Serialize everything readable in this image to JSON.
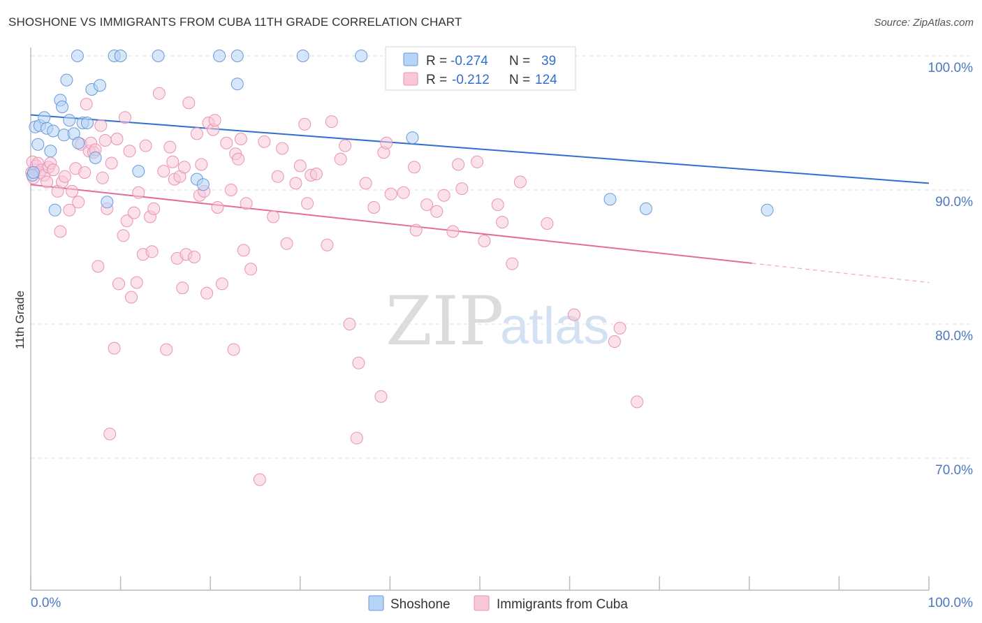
{
  "title": "SHOSHONE VS IMMIGRANTS FROM CUBA 11TH GRADE CORRELATION CHART",
  "source": "Source: ZipAtlas.com",
  "watermark": {
    "zip": "ZIP",
    "atlas": "atlas"
  },
  "colors": {
    "shoshone_fill": "#b7d3f5",
    "shoshone_stroke": "#6a9ad8",
    "shoshone_line": "#2f6fcf",
    "cuba_fill": "#f8c8d8",
    "cuba_stroke": "#e993b2",
    "cuba_line": "#e46c99",
    "grid": "#e2e2e2",
    "axis_label": "#4a78c2"
  },
  "legend_top": [
    {
      "r_label": "R =",
      "r_value": "-0.274",
      "n_label": "N =",
      "n_value": "39"
    },
    {
      "r_label": "R =",
      "r_value": "-0.212",
      "n_label": "N =",
      "n_value": "124"
    }
  ],
  "chart_data": {
    "type": "scatter",
    "title": "SHOSHONE VS IMMIGRANTS FROM CUBA 11TH GRADE CORRELATION CHART",
    "xlabel": "",
    "ylabel": "11th Grade",
    "xlim": [
      0,
      100
    ],
    "ylim": [
      60.5,
      101.5
    ],
    "x_tick_labels": [
      "0.0%",
      "100.0%"
    ],
    "y_ticks": [
      {
        "value": 100,
        "label": "100.0%"
      },
      {
        "value": 90,
        "label": "90.0%"
      },
      {
        "value": 80,
        "label": "80.0%"
      },
      {
        "value": 70,
        "label": "70.0%"
      }
    ],
    "grid": true,
    "legend_position": "bottom-center",
    "series": [
      {
        "name": "Shoshone",
        "r": -0.274,
        "n": 39,
        "trend": {
          "x": [
            0,
            100
          ],
          "y": [
            95.6,
            90.5
          ],
          "dashed_from": null
        },
        "points": [
          [
            0.2,
            91.1
          ],
          [
            0.5,
            94.7
          ],
          [
            0.8,
            93.4
          ],
          [
            1.0,
            94.8
          ],
          [
            1.5,
            95.4
          ],
          [
            1.8,
            94.6
          ],
          [
            2.2,
            92.9
          ],
          [
            2.5,
            94.4
          ],
          [
            2.7,
            88.5
          ],
          [
            3.3,
            96.7
          ],
          [
            3.5,
            96.2
          ],
          [
            3.7,
            94.1
          ],
          [
            4.0,
            98.2
          ],
          [
            4.3,
            95.2
          ],
          [
            4.8,
            94.2
          ],
          [
            5.2,
            100.0
          ],
          [
            5.3,
            93.5
          ],
          [
            5.8,
            95.0
          ],
          [
            6.3,
            95.0
          ],
          [
            6.8,
            97.5
          ],
          [
            7.2,
            92.4
          ],
          [
            7.7,
            97.8
          ],
          [
            8.5,
            89.1
          ],
          [
            9.3,
            100.0
          ],
          [
            10.0,
            100.0
          ],
          [
            12.0,
            91.4
          ],
          [
            14.2,
            100.0
          ],
          [
            18.5,
            90.8
          ],
          [
            19.2,
            90.4
          ],
          [
            21.0,
            100.0
          ],
          [
            23.0,
            100.0
          ],
          [
            23.0,
            97.9
          ],
          [
            30.3,
            100.0
          ],
          [
            36.8,
            100.0
          ],
          [
            42.5,
            93.9
          ],
          [
            64.5,
            89.3
          ],
          [
            68.5,
            88.6
          ],
          [
            82.0,
            88.5
          ],
          [
            0.3,
            91.3
          ]
        ]
      },
      {
        "name": "Immigrants from Cuba",
        "r": -0.212,
        "n": 124,
        "trend": {
          "x": [
            0,
            100
          ],
          "y": [
            90.4,
            83.1
          ],
          "dashed_from": 80.3
        },
        "points": [
          [
            0.1,
            91.3
          ],
          [
            0.2,
            92.1
          ],
          [
            0.3,
            90.9
          ],
          [
            0.5,
            91.5
          ],
          [
            0.6,
            91.8
          ],
          [
            0.8,
            92.0
          ],
          [
            1.0,
            91.3
          ],
          [
            1.2,
            91.5
          ],
          [
            1.5,
            91.1
          ],
          [
            1.8,
            90.6
          ],
          [
            2.0,
            91.7
          ],
          [
            2.2,
            92.0
          ],
          [
            2.5,
            91.5
          ],
          [
            3.0,
            89.9
          ],
          [
            3.3,
            86.9
          ],
          [
            3.5,
            90.6
          ],
          [
            3.8,
            91.0
          ],
          [
            4.3,
            88.5
          ],
          [
            4.6,
            89.9
          ],
          [
            5.0,
            91.6
          ],
          [
            5.3,
            89.1
          ],
          [
            5.6,
            93.4
          ],
          [
            6.0,
            91.3
          ],
          [
            6.2,
            96.4
          ],
          [
            6.5,
            92.9
          ],
          [
            6.7,
            93.5
          ],
          [
            7.0,
            92.8
          ],
          [
            7.2,
            93.0
          ],
          [
            7.5,
            84.3
          ],
          [
            7.8,
            94.8
          ],
          [
            8.0,
            90.9
          ],
          [
            8.3,
            93.7
          ],
          [
            8.5,
            88.6
          ],
          [
            8.8,
            71.8
          ],
          [
            9.0,
            92.0
          ],
          [
            9.3,
            78.2
          ],
          [
            9.6,
            93.8
          ],
          [
            9.8,
            83.0
          ],
          [
            10.3,
            86.6
          ],
          [
            10.5,
            95.4
          ],
          [
            10.7,
            87.7
          ],
          [
            11.0,
            92.9
          ],
          [
            11.2,
            82.0
          ],
          [
            11.5,
            88.3
          ],
          [
            11.8,
            83.1
          ],
          [
            12.0,
            89.8
          ],
          [
            12.5,
            85.2
          ],
          [
            12.8,
            93.3
          ],
          [
            13.3,
            88.0
          ],
          [
            13.5,
            85.4
          ],
          [
            13.7,
            88.6
          ],
          [
            14.3,
            97.2
          ],
          [
            14.8,
            91.4
          ],
          [
            15.1,
            78.1
          ],
          [
            15.5,
            93.2
          ],
          [
            15.8,
            92.1
          ],
          [
            16.0,
            90.8
          ],
          [
            16.3,
            84.9
          ],
          [
            16.6,
            91.0
          ],
          [
            16.9,
            82.7
          ],
          [
            17.1,
            91.7
          ],
          [
            17.3,
            85.2
          ],
          [
            17.6,
            96.5
          ],
          [
            18.2,
            85.0
          ],
          [
            18.5,
            94.2
          ],
          [
            18.8,
            89.6
          ],
          [
            19.0,
            91.9
          ],
          [
            19.3,
            89.9
          ],
          [
            19.6,
            82.3
          ],
          [
            19.8,
            95.0
          ],
          [
            20.3,
            94.5
          ],
          [
            20.5,
            95.2
          ],
          [
            20.8,
            88.7
          ],
          [
            21.3,
            83.0
          ],
          [
            21.8,
            93.5
          ],
          [
            22.3,
            90.0
          ],
          [
            22.6,
            78.1
          ],
          [
            22.8,
            92.7
          ],
          [
            23.1,
            92.3
          ],
          [
            23.4,
            93.8
          ],
          [
            23.7,
            85.5
          ],
          [
            24.0,
            89.0
          ],
          [
            24.5,
            84.1
          ],
          [
            25.5,
            68.4
          ],
          [
            26.0,
            93.6
          ],
          [
            27.0,
            88.0
          ],
          [
            27.5,
            91.0
          ],
          [
            28.0,
            93.1
          ],
          [
            28.5,
            86.0
          ],
          [
            29.5,
            90.5
          ],
          [
            30.0,
            91.8
          ],
          [
            30.5,
            94.9
          ],
          [
            30.8,
            89.0
          ],
          [
            31.2,
            91.1
          ],
          [
            31.8,
            91.2
          ],
          [
            33.0,
            85.9
          ],
          [
            33.5,
            95.1
          ],
          [
            34.5,
            92.3
          ],
          [
            35.0,
            93.3
          ],
          [
            35.5,
            80.0
          ],
          [
            36.3,
            71.5
          ],
          [
            36.5,
            77.1
          ],
          [
            37.3,
            90.5
          ],
          [
            38.2,
            88.7
          ],
          [
            39.0,
            74.6
          ],
          [
            39.3,
            92.8
          ],
          [
            39.6,
            93.5
          ],
          [
            40.1,
            89.7
          ],
          [
            41.5,
            89.8
          ],
          [
            42.7,
            91.7
          ],
          [
            42.9,
            87.0
          ],
          [
            44.1,
            88.9
          ],
          [
            45.2,
            88.4
          ],
          [
            46.0,
            89.6
          ],
          [
            47.0,
            86.9
          ],
          [
            47.6,
            91.9
          ],
          [
            48.0,
            90.1
          ],
          [
            49.7,
            92.1
          ],
          [
            50.5,
            86.2
          ],
          [
            52.0,
            88.9
          ],
          [
            52.5,
            87.6
          ],
          [
            53.6,
            84.5
          ],
          [
            54.5,
            90.6
          ],
          [
            57.5,
            87.5
          ],
          [
            60.5,
            80.7
          ],
          [
            65.0,
            78.7
          ],
          [
            65.6,
            79.7
          ],
          [
            67.5,
            74.2
          ]
        ]
      }
    ]
  },
  "legend_bottom": [
    {
      "label": "Shoshone"
    },
    {
      "label": "Immigrants from Cuba"
    }
  ]
}
